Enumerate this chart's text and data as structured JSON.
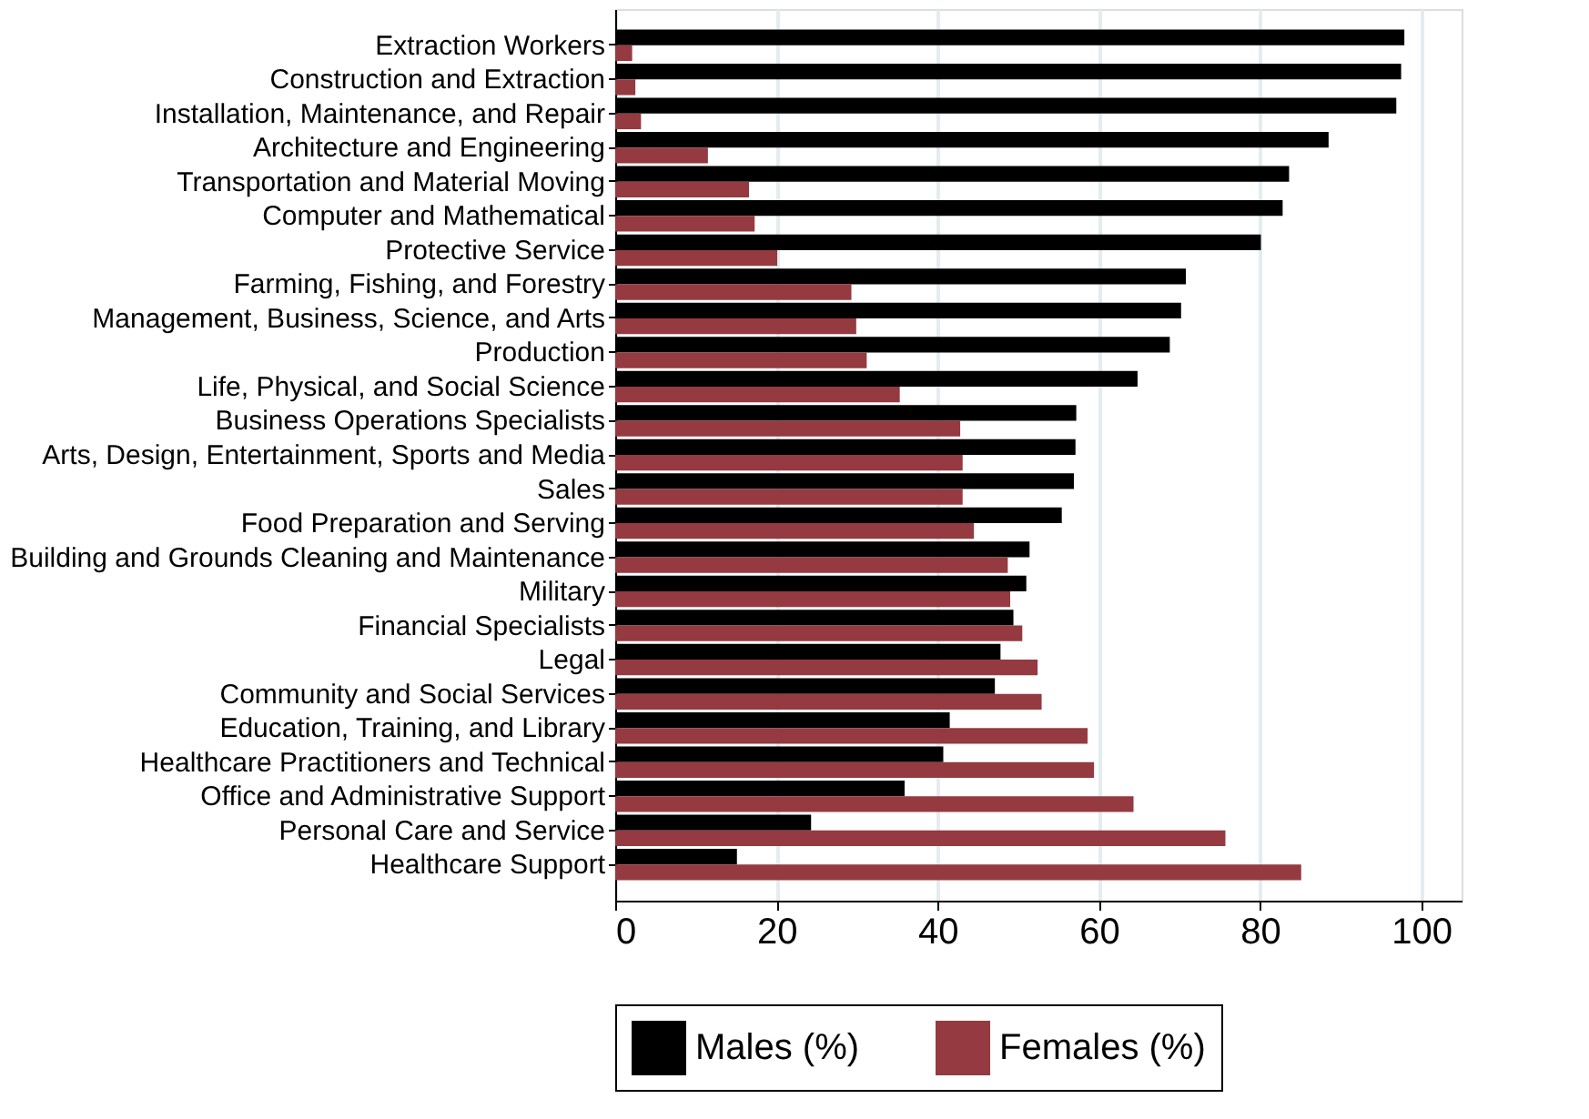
{
  "chart_data": {
    "type": "bar",
    "orientation": "horizontal",
    "categories": [
      "Extraction Workers",
      "Construction and Extraction",
      "Installation, Maintenance, and Repair",
      "Architecture and Engineering",
      "Transportation and Material Moving",
      "Computer and Mathematical",
      "Protective Service",
      "Farming, Fishing, and Forestry",
      "Management, Business, Science, and Arts",
      "Production",
      "Life, Physical, and Social Science",
      "Business Operations Specialists",
      "Arts, Design, Entertainment, Sports and Media",
      "Sales",
      "Food Preparation and Serving",
      "Building and Grounds Cleaning and Maintenance",
      "Military",
      "Financial Specialists",
      "Legal",
      "Community and Social Services",
      "Education, Training, and Library",
      "Healthcare Practitioners and Technical",
      "Office and Administrative Support",
      "Personal Care and Service",
      "Healthcare Support"
    ],
    "series": [
      {
        "name": "Males (%)",
        "color": "#000000",
        "values": [
          97.9,
          97.5,
          96.9,
          88.5,
          83.6,
          82.8,
          80.1,
          70.8,
          70.2,
          68.8,
          64.8,
          57.2,
          57.1,
          56.9,
          55.4,
          51.4,
          51.0,
          49.4,
          47.8,
          47.1,
          41.5,
          40.7,
          35.9,
          24.3,
          15.1
        ]
      },
      {
        "name": "Females (%)",
        "color": "#943a40",
        "values": [
          2.1,
          2.5,
          3.2,
          11.5,
          16.6,
          17.3,
          20.1,
          29.3,
          29.9,
          31.2,
          35.3,
          42.8,
          43.1,
          43.1,
          44.5,
          48.7,
          49.0,
          50.5,
          52.4,
          52.9,
          58.6,
          59.4,
          64.3,
          75.7,
          85.1
        ]
      }
    ],
    "xlim": [
      0,
      105
    ],
    "xticks": [
      0,
      20,
      40,
      60,
      80,
      100
    ],
    "grid": "x",
    "legend": "bottom"
  }
}
